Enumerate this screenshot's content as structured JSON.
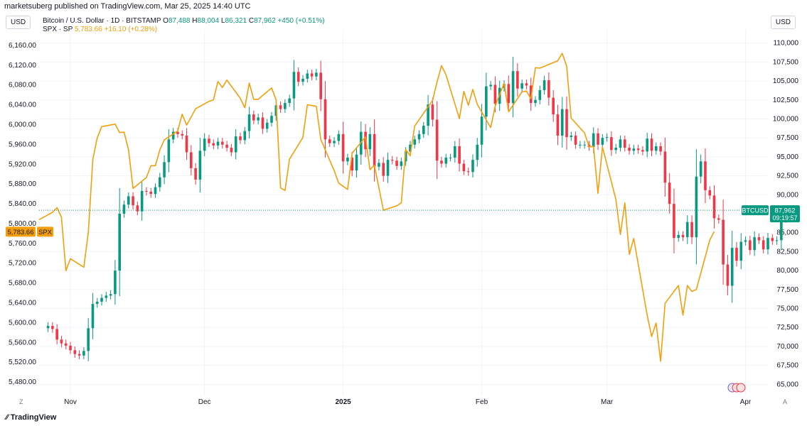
{
  "header": {
    "publisher": "marketsuberg published on TradingView.com, Mar 25, 2025 14:40 UTC",
    "currency_left": "USD",
    "currency_right": "USD"
  },
  "legend": {
    "btc_name": "Bitcoin / U.S. Dollar · 1D · BITSTAMP",
    "btc_open_label": "O",
    "btc_open": "87,488",
    "btc_high_label": "H",
    "btc_high": "88,004",
    "btc_low_label": "L",
    "btc_low": "86,321",
    "btc_close_label": "C",
    "btc_close": "87,962",
    "btc_change": "+450 (+0.51%)",
    "spx_name": "SPX · SP",
    "spx_value": "5,783.66",
    "spx_change": "+16.10 (+0.28%)"
  },
  "footer": {
    "brand": "TradingView",
    "z_label": "Z",
    "a_label": "A"
  },
  "colors": {
    "up": "#089981",
    "down": "#f23645",
    "spx": "#f59e0b",
    "grid": "#f0f3fa",
    "text": "#131722"
  },
  "chart_data": {
    "type": "candlestick",
    "left_axis": {
      "name": "SPX",
      "ticks": [
        "5,480.00",
        "5,520.00",
        "5,560.00",
        "5,600.00",
        "5,640.00",
        "5,680.00",
        "5,720.00",
        "5,760.00",
        "5,800.00",
        "5,840.00",
        "5,880.00",
        "5,920.00",
        "5,960.00",
        "6,000.00",
        "6,040.00",
        "6,080.00",
        "6,120.00",
        "6,160.00"
      ],
      "range": [
        5460,
        6180
      ]
    },
    "right_axis": {
      "name": "BTCUSD",
      "ticks": [
        "65,000",
        "67,500",
        "70,000",
        "72,500",
        "75,000",
        "77,500",
        "80,000",
        "82,500",
        "85,000",
        "87,500",
        "90,000",
        "92,500",
        "95,000",
        "97,500",
        "100,000",
        "102,500",
        "105,000",
        "107,500",
        "110,000"
      ],
      "range": [
        64000,
        111000
      ]
    },
    "x_labels": [
      "Nov",
      "Dec",
      "2025",
      "Feb",
      "Mar",
      "Apr"
    ],
    "x_label_dates": [
      "2024-11-01",
      "2024-12-01",
      "2025-01-01",
      "2025-02-01",
      "2025-03-01",
      "2025-04-01"
    ],
    "x_range": [
      "2024-10-25",
      "2025-04-06"
    ],
    "btc_last": {
      "label": "BTCUSD",
      "price": "87,962",
      "countdown": "09:19:57",
      "value": 87962
    },
    "spx_last": {
      "label": "SPX",
      "price": "5,783.66",
      "value": 5783.66
    },
    "btc_start_date": "2024-10-27",
    "btc_closes": [
      72700,
      72300,
      70900,
      70400,
      70100,
      69500,
      69000,
      68800,
      69400,
      72400,
      75600,
      75900,
      76400,
      76700,
      76900,
      80000,
      87500,
      88700,
      89800,
      88600,
      87800,
      90500,
      90400,
      90100,
      91000,
      92300,
      94300,
      97300,
      98300,
      98000,
      97800,
      95600,
      93500,
      92000,
      95800,
      97400,
      96800,
      96500,
      97000,
      96600,
      96200,
      95600,
      97700,
      97200,
      98400,
      100600,
      99800,
      100200,
      98700,
      99500,
      100400,
      101800,
      101300,
      102100,
      102700,
      106200,
      104900,
      105300,
      106000,
      105600,
      106100,
      102600,
      97300,
      96800,
      97100,
      98000,
      94400,
      94900,
      93200,
      95300,
      98300,
      96000,
      98000,
      93700,
      94200,
      92500,
      94600,
      94500,
      93800,
      94400,
      95700,
      96600,
      97300,
      98000,
      99100,
      101900,
      99900,
      94500,
      94100,
      94900,
      94900,
      96400,
      94100,
      93100,
      93000,
      94600,
      96600,
      100300,
      104300,
      104500,
      102000,
      104100,
      104600,
      102100,
      106300,
      104000,
      104700,
      104400,
      102100,
      102500,
      103800,
      105100,
      102800,
      100600,
      97800,
      101300,
      97600,
      97800,
      96600,
      96600,
      96600,
      96300,
      98100,
      96600,
      97500,
      97600,
      95900,
      96200,
      97300,
      96200,
      95800,
      96100,
      95900,
      95700,
      97400,
      95800,
      96400,
      95700,
      91600,
      88800,
      84300,
      84700,
      84400,
      86400,
      84400,
      92400,
      94400,
      90600,
      89900,
      86900,
      86700,
      80800,
      78000,
      83000,
      81300,
      83800,
      84000,
      82700,
      84400,
      84000,
      82800,
      84300,
      83900,
      84000,
      86800,
      87500,
      87962
    ],
    "spx_points": [
      {
        "d": "2024-10-25",
        "v": 5808
      },
      {
        "d": "2024-10-28",
        "v": 5823
      },
      {
        "d": "2024-10-29",
        "v": 5832
      },
      {
        "d": "2024-10-30",
        "v": 5813
      },
      {
        "d": "2024-10-31",
        "v": 5705
      },
      {
        "d": "2024-11-01",
        "v": 5729
      },
      {
        "d": "2024-11-04",
        "v": 5712
      },
      {
        "d": "2024-11-05",
        "v": 5782
      },
      {
        "d": "2024-11-06",
        "v": 5929
      },
      {
        "d": "2024-11-07",
        "v": 5973
      },
      {
        "d": "2024-11-08",
        "v": 5996
      },
      {
        "d": "2024-11-11",
        "v": 6001
      },
      {
        "d": "2024-11-12",
        "v": 5984
      },
      {
        "d": "2024-11-13",
        "v": 5985
      },
      {
        "d": "2024-11-14",
        "v": 5949
      },
      {
        "d": "2024-11-15",
        "v": 5871
      },
      {
        "d": "2024-11-18",
        "v": 5893
      },
      {
        "d": "2024-11-19",
        "v": 5917
      },
      {
        "d": "2024-11-20",
        "v": 5917
      },
      {
        "d": "2024-11-21",
        "v": 5949
      },
      {
        "d": "2024-11-22",
        "v": 5969
      },
      {
        "d": "2024-11-25",
        "v": 5987
      },
      {
        "d": "2024-11-26",
        "v": 6021
      },
      {
        "d": "2024-11-27",
        "v": 5999
      },
      {
        "d": "2024-11-29",
        "v": 6032
      },
      {
        "d": "2024-12-02",
        "v": 6047
      },
      {
        "d": "2024-12-03",
        "v": 6050
      },
      {
        "d": "2024-12-04",
        "v": 6087
      },
      {
        "d": "2024-12-05",
        "v": 6075
      },
      {
        "d": "2024-12-06",
        "v": 6090
      },
      {
        "d": "2024-12-09",
        "v": 6053
      },
      {
        "d": "2024-12-10",
        "v": 6034
      },
      {
        "d": "2024-12-11",
        "v": 6084
      },
      {
        "d": "2024-12-12",
        "v": 6051
      },
      {
        "d": "2024-12-13",
        "v": 6051
      },
      {
        "d": "2024-12-16",
        "v": 6074
      },
      {
        "d": "2024-12-17",
        "v": 6050
      },
      {
        "d": "2024-12-18",
        "v": 5872
      },
      {
        "d": "2024-12-19",
        "v": 5867
      },
      {
        "d": "2024-12-20",
        "v": 5930
      },
      {
        "d": "2024-12-23",
        "v": 5974
      },
      {
        "d": "2024-12-24",
        "v": 6040
      },
      {
        "d": "2024-12-26",
        "v": 6037
      },
      {
        "d": "2024-12-27",
        "v": 5970
      },
      {
        "d": "2024-12-30",
        "v": 5907
      },
      {
        "d": "2024-12-31",
        "v": 5882
      },
      {
        "d": "2025-01-02",
        "v": 5869
      },
      {
        "d": "2025-01-03",
        "v": 5942
      },
      {
        "d": "2025-01-06",
        "v": 5975
      },
      {
        "d": "2025-01-07",
        "v": 5909
      },
      {
        "d": "2025-01-08",
        "v": 5918
      },
      {
        "d": "2025-01-10",
        "v": 5827
      },
      {
        "d": "2025-01-13",
        "v": 5836
      },
      {
        "d": "2025-01-14",
        "v": 5842
      },
      {
        "d": "2025-01-15",
        "v": 5950
      },
      {
        "d": "2025-01-16",
        "v": 5937
      },
      {
        "d": "2025-01-17",
        "v": 5997
      },
      {
        "d": "2025-01-21",
        "v": 6049
      },
      {
        "d": "2025-01-22",
        "v": 6086
      },
      {
        "d": "2025-01-23",
        "v": 6119
      },
      {
        "d": "2025-01-24",
        "v": 6101
      },
      {
        "d": "2025-01-27",
        "v": 6012
      },
      {
        "d": "2025-01-28",
        "v": 6067
      },
      {
        "d": "2025-01-29",
        "v": 6039
      },
      {
        "d": "2025-01-30",
        "v": 6071
      },
      {
        "d": "2025-01-31",
        "v": 6041
      },
      {
        "d": "2025-02-03",
        "v": 5994
      },
      {
        "d": "2025-02-04",
        "v": 6037
      },
      {
        "d": "2025-02-05",
        "v": 6061
      },
      {
        "d": "2025-02-06",
        "v": 6083
      },
      {
        "d": "2025-02-07",
        "v": 6026
      },
      {
        "d": "2025-02-10",
        "v": 6066
      },
      {
        "d": "2025-02-11",
        "v": 6068
      },
      {
        "d": "2025-02-12",
        "v": 6052
      },
      {
        "d": "2025-02-13",
        "v": 6115
      },
      {
        "d": "2025-02-14",
        "v": 6114
      },
      {
        "d": "2025-02-18",
        "v": 6129
      },
      {
        "d": "2025-02-19",
        "v": 6144
      },
      {
        "d": "2025-02-20",
        "v": 6118
      },
      {
        "d": "2025-02-21",
        "v": 6013
      },
      {
        "d": "2025-02-24",
        "v": 5983
      },
      {
        "d": "2025-02-25",
        "v": 5955
      },
      {
        "d": "2025-02-26",
        "v": 5956
      },
      {
        "d": "2025-02-27",
        "v": 5861
      },
      {
        "d": "2025-02-28",
        "v": 5955
      },
      {
        "d": "2025-03-03",
        "v": 5849
      },
      {
        "d": "2025-03-04",
        "v": 5778
      },
      {
        "d": "2025-03-05",
        "v": 5842
      },
      {
        "d": "2025-03-06",
        "v": 5738
      },
      {
        "d": "2025-03-07",
        "v": 5770
      },
      {
        "d": "2025-03-10",
        "v": 5615
      },
      {
        "d": "2025-03-11",
        "v": 5572
      },
      {
        "d": "2025-03-12",
        "v": 5599
      },
      {
        "d": "2025-03-13",
        "v": 5522
      },
      {
        "d": "2025-03-14",
        "v": 5639
      },
      {
        "d": "2025-03-17",
        "v": 5675
      },
      {
        "d": "2025-03-18",
        "v": 5615
      },
      {
        "d": "2025-03-19",
        "v": 5675
      },
      {
        "d": "2025-03-20",
        "v": 5663
      },
      {
        "d": "2025-03-21",
        "v": 5667
      },
      {
        "d": "2025-03-24",
        "v": 5767
      },
      {
        "d": "2025-03-25",
        "v": 5784
      }
    ]
  }
}
